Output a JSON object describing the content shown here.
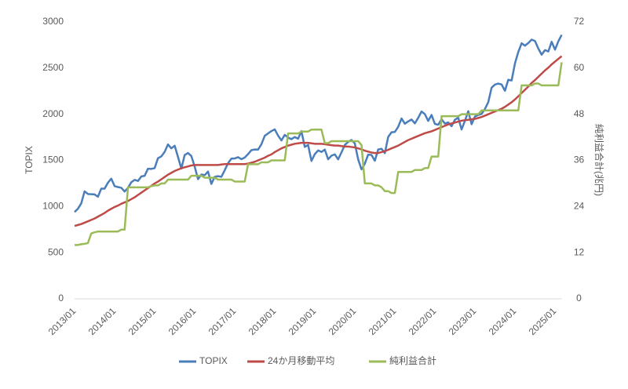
{
  "chart_data": {
    "type": "line",
    "y_label": "TOPIX",
    "y2_label": "純利益合計(兆円)",
    "categories": [
      "2013/01",
      null,
      null,
      null,
      null,
      null,
      null,
      null,
      null,
      null,
      null,
      null,
      "2014/01",
      null,
      null,
      null,
      null,
      null,
      null,
      null,
      null,
      null,
      null,
      null,
      "2015/01",
      null,
      null,
      null,
      null,
      null,
      null,
      null,
      null,
      null,
      null,
      null,
      "2016/01",
      null,
      null,
      null,
      null,
      null,
      null,
      null,
      null,
      null,
      null,
      null,
      "2017/01",
      null,
      null,
      null,
      null,
      null,
      null,
      null,
      null,
      null,
      null,
      null,
      "2018/01",
      null,
      null,
      null,
      null,
      null,
      null,
      null,
      null,
      null,
      null,
      null,
      "2019/01",
      null,
      null,
      null,
      null,
      null,
      null,
      null,
      null,
      null,
      null,
      null,
      "2020/01",
      null,
      null,
      null,
      null,
      null,
      null,
      null,
      null,
      null,
      null,
      null,
      "2021/01",
      null,
      null,
      null,
      null,
      null,
      null,
      null,
      null,
      null,
      null,
      null,
      "2022/01",
      null,
      null,
      null,
      null,
      null,
      null,
      null,
      null,
      null,
      null,
      null,
      "2023/01",
      null,
      null,
      null,
      null,
      null,
      null,
      null,
      null,
      null,
      null,
      null,
      "2024/01",
      null,
      null,
      null,
      null,
      null,
      null,
      null,
      null,
      null,
      null,
      null,
      "2025/01",
      null,
      null
    ],
    "ylim": [
      0,
      3000
    ],
    "yticks": [
      0,
      500,
      1000,
      1500,
      2000,
      2500,
      3000
    ],
    "y2lim": [
      0,
      72
    ],
    "y2ticks": [
      0,
      12,
      24,
      36,
      48,
      60,
      72
    ],
    "grid": false,
    "legend": "bottom",
    "series": [
      {
        "name": "TOPIX",
        "color": "#4a7ebb",
        "values": [
          940,
          976,
          1034,
          1165,
          1136,
          1133,
          1131,
          1106,
          1194,
          1194,
          1258,
          1302,
          1221,
          1211,
          1203,
          1163,
          1202,
          1263,
          1289,
          1277,
          1326,
          1333,
          1410,
          1408,
          1416,
          1524,
          1543,
          1592,
          1673,
          1630,
          1659,
          1537,
          1411,
          1558,
          1580,
          1547,
          1433,
          1297,
          1347,
          1340,
          1379,
          1245,
          1322,
          1329,
          1322,
          1393,
          1469,
          1519,
          1521,
          1535,
          1513,
          1531,
          1568,
          1611,
          1618,
          1617,
          1675,
          1766,
          1792,
          1818,
          1836,
          1768,
          1716,
          1777,
          1747,
          1730,
          1753,
          1735,
          1817,
          1646,
          1667,
          1494,
          1567,
          1608,
          1591,
          1617,
          1512,
          1551,
          1565,
          1511,
          1587,
          1667,
          1700,
          1721,
          1684,
          1511,
          1403,
          1464,
          1563,
          1558,
          1496,
          1618,
          1626,
          1579,
          1754,
          1805,
          1808,
          1864,
          1954,
          1898,
          1922,
          1943,
          1901,
          1961,
          2030,
          2001,
          1928,
          1992,
          1895,
          1886,
          1946,
          1899,
          1912,
          1870,
          1940,
          1963,
          1835,
          1929,
          2033,
          1892,
          1975,
          1993,
          2003,
          2057,
          2131,
          2288,
          2322,
          2332,
          2323,
          2254,
          2374,
          2366,
          2551,
          2675,
          2769,
          2743,
          2772,
          2809,
          2794,
          2712,
          2645,
          2695,
          2680,
          2785,
          2700,
          2790,
          2860
        ]
      },
      {
        "name": "24か月移動平均",
        "color": "#be4b48",
        "values": [
          790,
          800,
          810,
          825,
          840,
          855,
          870,
          890,
          910,
          930,
          955,
          975,
          995,
          1010,
          1030,
          1045,
          1060,
          1080,
          1100,
          1125,
          1150,
          1175,
          1200,
          1225,
          1250,
          1270,
          1295,
          1320,
          1345,
          1365,
          1385,
          1400,
          1415,
          1425,
          1435,
          1445,
          1450,
          1450,
          1450,
          1450,
          1450,
          1450,
          1450,
          1450,
          1455,
          1460,
          1460,
          1460,
          1460,
          1460,
          1460,
          1460,
          1465,
          1475,
          1485,
          1500,
          1515,
          1530,
          1550,
          1565,
          1590,
          1610,
          1630,
          1645,
          1660,
          1670,
          1680,
          1685,
          1690,
          1690,
          1690,
          1685,
          1680,
          1680,
          1680,
          1675,
          1670,
          1665,
          1660,
          1660,
          1655,
          1650,
          1650,
          1645,
          1640,
          1630,
          1620,
          1605,
          1595,
          1585,
          1580,
          1580,
          1590,
          1600,
          1615,
          1630,
          1645,
          1660,
          1680,
          1700,
          1720,
          1735,
          1750,
          1765,
          1780,
          1795,
          1805,
          1815,
          1830,
          1845,
          1860,
          1875,
          1890,
          1900,
          1910,
          1920,
          1930,
          1935,
          1940,
          1945,
          1950,
          1960,
          1970,
          1985,
          2000,
          2015,
          2030,
          2045,
          2060,
          2080,
          2105,
          2130,
          2160,
          2195,
          2230,
          2265,
          2300,
          2340,
          2370,
          2405,
          2440,
          2475,
          2505,
          2540,
          2570,
          2600,
          2630
        ]
      },
      {
        "name": "純利益合計",
        "color": "#9bbb59",
        "axis": "y2",
        "values": [
          14,
          14,
          14.2,
          14.3,
          14.5,
          17,
          17.3,
          17.5,
          17.5,
          17.5,
          17.5,
          17.5,
          17.5,
          17.5,
          18,
          18,
          29,
          29,
          29,
          29,
          29,
          29,
          29,
          29.3,
          29.5,
          29.5,
          30,
          30,
          31,
          31,
          31,
          31,
          31,
          31,
          31,
          32,
          32,
          32,
          32,
          31.5,
          31.5,
          31.5,
          31.5,
          31,
          31,
          31,
          31,
          31,
          30.5,
          30.5,
          30.5,
          30.5,
          35,
          35,
          35,
          35,
          35.5,
          35.5,
          35.5,
          36,
          36,
          36,
          36,
          36,
          43,
          43,
          43,
          43,
          43.5,
          43.5,
          43.5,
          44,
          44,
          44,
          44,
          40.5,
          40.5,
          41,
          41,
          41,
          41,
          41,
          41,
          41,
          41,
          41,
          40,
          30,
          30,
          30,
          29.5,
          29.5,
          29,
          28,
          28,
          27.5,
          27.5,
          33,
          33,
          33,
          33,
          33,
          33.5,
          33.5,
          33.5,
          34,
          34,
          37,
          37,
          37,
          47.5,
          47.5,
          47.5,
          47.5,
          47.5,
          47.5,
          48,
          48,
          48,
          48,
          48,
          48,
          49,
          49,
          49,
          49,
          49,
          49,
          49,
          49,
          49,
          49,
          49,
          49,
          55.5,
          55.5,
          55.5,
          55.5,
          56,
          56,
          55.5,
          55.5,
          55.5,
          55.5,
          55.5,
          55.5,
          61.5
        ]
      }
    ]
  }
}
